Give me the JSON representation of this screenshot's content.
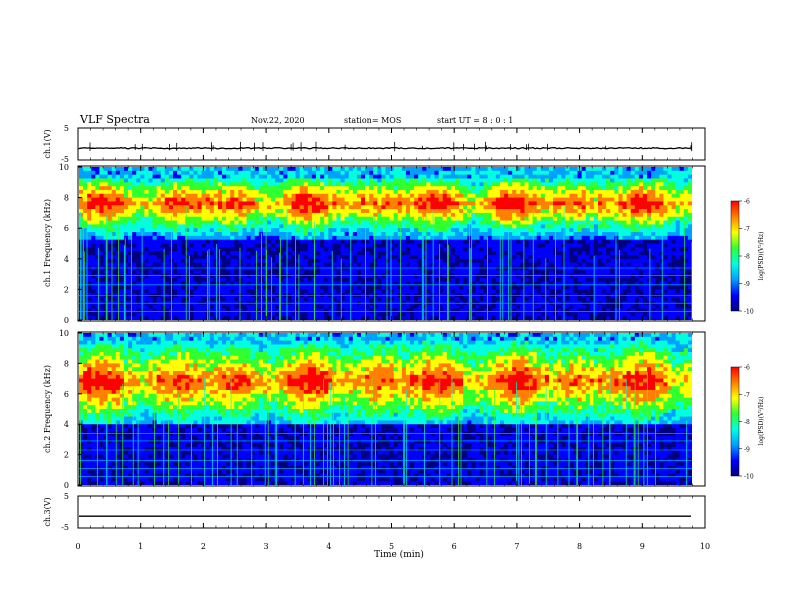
{
  "header": {
    "title": "VLF Spectra",
    "date": "Nov.22, 2020",
    "station": "station= MOS",
    "start_ut": "start  UT =   8 : 0  : 1"
  },
  "chart_data": [
    {
      "type": "line",
      "name": "ch1-waveform",
      "ylabel": "ch.1(V)",
      "ylim": [
        -5,
        5
      ],
      "yticks": [
        "5",
        "-5"
      ],
      "xlim": [
        0,
        10
      ],
      "series": [
        {
          "values": [
            -1.3,
            -1.3
          ]
        }
      ]
    },
    {
      "type": "heatmap",
      "name": "ch1-spectrogram",
      "ylabel": "ch.1 Frequency (kHz)",
      "ylim": [
        0,
        10
      ],
      "yticks": [
        "0",
        "2",
        "4",
        "6",
        "8",
        "10"
      ],
      "xlim": [
        0,
        9.83
      ],
      "band_khz": [
        5.2,
        9.2
      ],
      "band_peak_khz": 7.6,
      "colorbar": {
        "label": "log(PSD)(V²/Hz)",
        "range": [
          -10,
          -6
        ],
        "ticks": [
          "-6",
          "-7",
          "-8",
          "-9",
          "-10"
        ]
      }
    },
    {
      "type": "heatmap",
      "name": "ch2-spectrogram",
      "ylabel": "ch.2 Frequency (kHz)",
      "ylim": [
        0,
        10
      ],
      "yticks": [
        "0",
        "2",
        "4",
        "6",
        "8",
        "10"
      ],
      "xlim": [
        0,
        9.83
      ],
      "band_khz": [
        4.0,
        9.6
      ],
      "band_peak_khz": 6.8,
      "colorbar": {
        "label": "log(PSD)(V²/Hz)",
        "range": [
          -10,
          -6
        ],
        "ticks": [
          "-6",
          "-7",
          "-8",
          "-9",
          "-10"
        ]
      }
    },
    {
      "type": "line",
      "name": "ch3-waveform",
      "ylabel": "ch.3(V)",
      "ylim": [
        -5,
        5
      ],
      "yticks": [
        "5",
        "-5"
      ],
      "xlim": [
        0,
        10
      ],
      "series": [
        {
          "values": [
            -1.3,
            -1.3
          ]
        }
      ]
    }
  ],
  "x_axis": {
    "label": "Time (min)",
    "range": [
      0,
      10
    ],
    "ticks": [
      "0",
      "1",
      "2",
      "3",
      "4",
      "5",
      "6",
      "7",
      "8",
      "9",
      "10"
    ]
  },
  "colormap": [
    "#00007f",
    "#0000ff",
    "#00a0ff",
    "#00ffe0",
    "#30ff30",
    "#ffff00",
    "#ff8000",
    "#ff0000"
  ]
}
